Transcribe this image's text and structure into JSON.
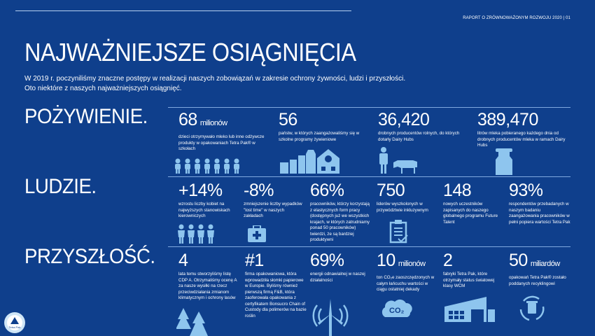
{
  "header": "RAPORT O ZRÓWNOWAŻONYM ROZWOJU 2020 | 01",
  "title": "NAJWAŻNIEJSZE OSIĄGNIĘCIA",
  "intro": [
    "W 2019 r. poczyniliśmy znaczne postępy w realizacji naszych zobowiązań w zakresie ochrony żywności, ludzi i przyszłości.",
    "Oto niektóre z naszych najważniejszych osiągnięć."
  ],
  "logo_text": "Tetra Pak",
  "sections": [
    {
      "label": "POŻYWIENIE.",
      "stats": [
        {
          "value": "68",
          "unit": "milionów",
          "desc": "dzieci otrzymywało mleko lub inne odżywcze produkty w opakowaniach Tetra Pak® w szkołach",
          "icon": "children-icon"
        },
        {
          "value": "56",
          "unit": "",
          "desc": "państw, w których zaangażowaliśmy się w szkolne programy żywieniowe",
          "icon": "school-packages-icon"
        },
        {
          "value": "36,420",
          "unit": "",
          "desc": "drobnych producentów rolnych, do których dotarły Dairy Hubs",
          "icon": "farmer-cow-icon"
        },
        {
          "value": "389,470",
          "unit": "",
          "desc": "litrów mleka pobieranego każdego dnia od drobnych producentów mleka w ramach Dairy Hubs",
          "icon": "milk-can-icon"
        }
      ]
    },
    {
      "label": "LUDZIE.",
      "stats": [
        {
          "value": "+14%",
          "unit": "",
          "desc": "wzrostu liczby kobiet na najwyższych stanowiskach kierowniczych",
          "icon": "women-icon"
        },
        {
          "value": "-8%",
          "unit": "",
          "desc": "zmniejszenie liczby wypadków \"lost time\" w naszych zakładach",
          "icon": "first-aid-icon"
        },
        {
          "value": "66%",
          "unit": "",
          "desc": "pracowników, którzy korzystają z elastycznych form pracy (dostępnych już we wszystkich krajach, w których zatrudniamy ponad 50 pracowników) twierdzi, że są bardziej produktywni",
          "icon": ""
        },
        {
          "value": "750",
          "unit": "",
          "desc": "liderów wyszkolonych w przywództwie inkluzywnym",
          "icon": "clipboard-icon"
        },
        {
          "value": "148",
          "unit": "",
          "desc": "nowych uczestników zapisanych do naszego globalnego programu Future Talent",
          "icon": ""
        },
        {
          "value": "93%",
          "unit": "",
          "desc": "respondentów przebadanych w naszym badaniu zaangażowania pracowników w pełni popiera wartości Tetra Pak",
          "icon": ""
        }
      ]
    },
    {
      "label": "PRZYSZŁOŚĆ.",
      "stats": [
        {
          "value": "4",
          "unit": "",
          "desc": "lata temu stworzyliśmy listę CDP A. Otrzymaliśmy ocenę A za nasze wysiłki na rzecz przeciwdziałania zmianom klimatycznym i ochrony lasów",
          "icon": "trees-icon"
        },
        {
          "value": "#1",
          "unit": "",
          "desc": "firma opakowaniowa, która wprowadziła słomki papierowe w Europie. Byliśmy również pierwszą firmą F&B, która zaoferowała opakowania z certyfikatem Bonsucro Chain of Custody dla polimerów na bazie roślin",
          "icon": ""
        },
        {
          "value": "69%",
          "unit": "",
          "desc": "energii odnawialnej w naszej działalności",
          "icon": "wind-turbine-icon"
        },
        {
          "value": "10",
          "unit": "milionów",
          "desc": "ton CO₂e zaoszczędzonych w całym łańcuchu wartości w ciągu ostatniej dekady",
          "icon": "co2-cloud-icon"
        },
        {
          "value": "2",
          "unit": "",
          "desc": "fabryki Tetra Pak, które otrzymały status światowej klasy WCM",
          "icon": "factory-icon"
        },
        {
          "value": "50",
          "unit": "miliardów",
          "desc": "opakowań Tetra Pak® zostało poddanych recyklingowi",
          "icon": "recycling-icon"
        }
      ]
    }
  ],
  "co2_label": "CO₂",
  "colors": {
    "background": "#0f3f8c",
    "icon": "#8ec5ee"
  }
}
